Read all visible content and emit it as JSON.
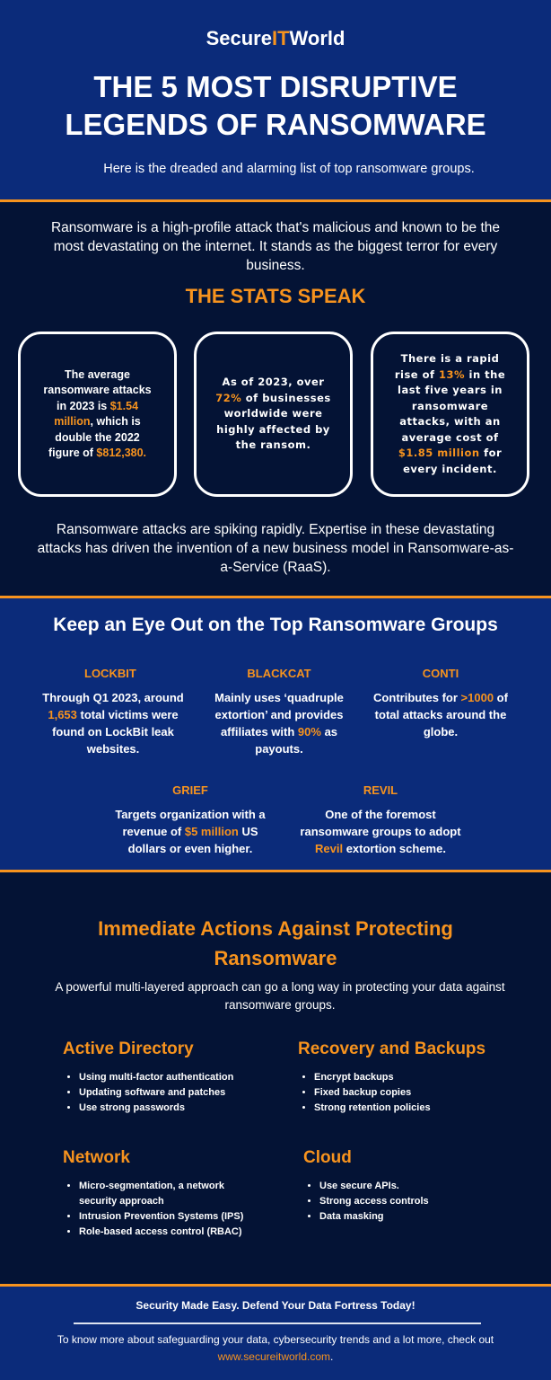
{
  "colors": {
    "brand_blue": "#0b2b7a",
    "dark_navy": "#041335",
    "accent": "#f7931e"
  },
  "header": {
    "logo": {
      "part1": "Secure",
      "part2": "IT",
      "part3": "World"
    },
    "title_line1": "THE 5 MOST DISRUPTIVE",
    "title_line2": "LEGENDS OF RANSOMWARE",
    "subtitle": "Here is the dreaded and alarming list of top ransomware groups."
  },
  "stats": {
    "intro": "Ransomware is a high-profile attack that's malicious and known to be the most devastating on the internet. It stands as the biggest terror for every business.",
    "heading": "THE STATS SPEAK",
    "cards": [
      [
        {
          "t": "The average ransomware attacks in 2023 is "
        },
        {
          "t": "$1.54 million",
          "hi": true
        },
        {
          "t": ", which is double the 2022 figure of "
        },
        {
          "t": "$812,380.",
          "hi": true
        }
      ],
      [
        {
          "t": "As of 2023, over "
        },
        {
          "t": "72%",
          "hi": true
        },
        {
          "t": " of businesses worldwide were highly affected by the ransom."
        }
      ],
      [
        {
          "t": "There is a rapid rise of "
        },
        {
          "t": "13%",
          "hi": true
        },
        {
          "t": " in the last five years in ransomware attacks, with an average cost of "
        },
        {
          "t": "$1.85 million",
          "hi": true
        },
        {
          "t": " for every incident."
        }
      ]
    ],
    "outro": "Ransomware attacks are spiking rapidly. Expertise in these devastating attacks has driven the invention of a new business model in Ransomware-as-a-Service (RaaS)."
  },
  "groups": {
    "heading": "Keep an Eye Out on the Top Ransomware Groups",
    "items": [
      {
        "name": "LOCKBIT",
        "text": [
          {
            "t": "Through Q1 2023, around "
          },
          {
            "t": "1,653",
            "hi": true
          },
          {
            "t": " total victims were found on LockBit leak websites."
          }
        ]
      },
      {
        "name": "BLACKCAT",
        "text": [
          {
            "t": "Mainly uses ‘quadruple extortion’ and provides affiliates with "
          },
          {
            "t": "90%",
            "hi": true
          },
          {
            "t": " as payouts."
          }
        ]
      },
      {
        "name": "CONTI",
        "text": [
          {
            "t": "Contributes for "
          },
          {
            "t": ">1000",
            "hi": true
          },
          {
            "t": " of total attacks around the globe."
          }
        ]
      },
      {
        "name": "GRIEF",
        "text": [
          {
            "t": "Targets organization with a revenue of "
          },
          {
            "t": "$5 million",
            "hi": true
          },
          {
            "t": " US dollars or even higher."
          }
        ]
      },
      {
        "name": "REVIL",
        "text": [
          {
            "t": "One of the foremost ransomware groups to adopt "
          },
          {
            "t": "Revil",
            "hi": true
          },
          {
            "t": " extortion scheme."
          }
        ]
      }
    ]
  },
  "actions": {
    "heading": "Immediate Actions Against Protecting Ransomware",
    "description": "A powerful multi-layered approach can go a long way in protecting your data against ransomware groups.",
    "blocks": [
      {
        "title": "Active Directory",
        "items": [
          "Using multi-factor authentication",
          "Updating software and patches",
          "Use strong passwords"
        ]
      },
      {
        "title": "Recovery and Backups",
        "items": [
          "Encrypt backups",
          "Fixed backup copies",
          "Strong retention policies"
        ]
      },
      {
        "title": "Network",
        "items": [
          "Micro-segmentation, a network security approach",
          "Intrusion Prevention Systems (IPS)",
          "Role-based access control (RBAC)"
        ]
      },
      {
        "title": "Cloud",
        "items": [
          "Use secure APIs.",
          "Strong access controls",
          "Data masking"
        ]
      }
    ]
  },
  "footer": {
    "tagline": "Security Made Easy. Defend Your Data Fortress Today!",
    "text": "To know more about safeguarding your data, cybersecurity trends and a lot more, check out ",
    "link": "www.secureitworld.com",
    "end": "."
  }
}
